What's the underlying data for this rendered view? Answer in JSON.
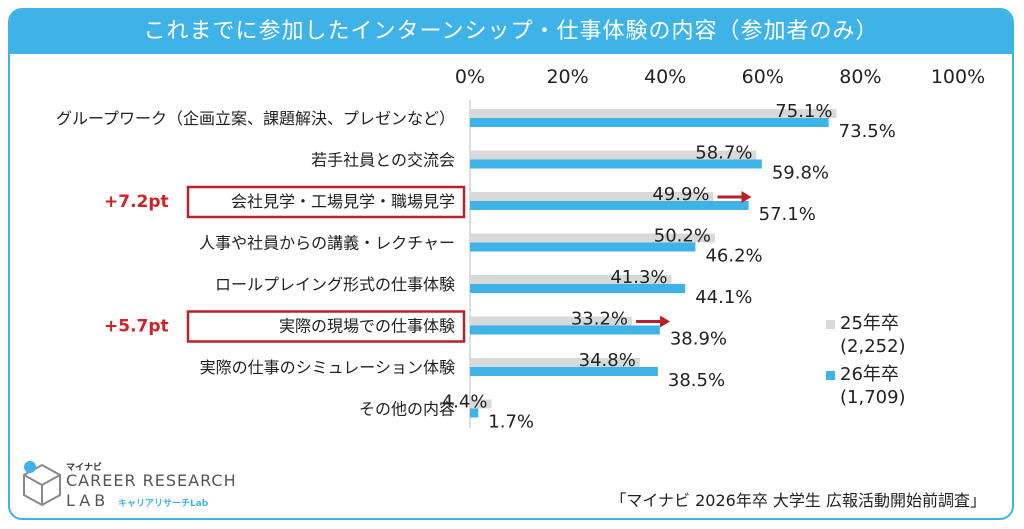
{
  "title": "これまでに参加したインターンシップ・仕事体験の内容（参加者のみ）",
  "chart_data": {
    "type": "bar",
    "orientation": "horizontal",
    "categories": [
      "グループワーク（企画立案、課題解決、プレゼンなど）",
      "若手社員との交流会",
      "会社見学・工場見学・職場見学",
      "人事や社員からの講義・レクチャー",
      "ロールプレイング形式の仕事体験",
      "実際の現場での仕事体験",
      "実際の仕事のシミュレーション体験",
      "その他の内容"
    ],
    "series": [
      {
        "name": "25年卒",
        "n_label": "(2,252)",
        "color": "#d9d9d9",
        "values": [
          75.1,
          58.7,
          49.9,
          50.2,
          41.3,
          33.2,
          34.8,
          4.4
        ],
        "labels": [
          "75.1%",
          "58.7%",
          "49.9%",
          "50.2%",
          "41.3%",
          "33.2%",
          "34.8%",
          "4.4%"
        ]
      },
      {
        "name": "26年卒",
        "n_label": "(1,709)",
        "color": "#3fb2e7",
        "values": [
          73.5,
          59.8,
          57.1,
          46.2,
          44.1,
          38.9,
          38.5,
          1.7
        ],
        "labels": [
          "73.5%",
          "59.8%",
          "57.1%",
          "46.2%",
          "44.1%",
          "38.9%",
          "38.5%",
          "1.7%"
        ]
      }
    ],
    "x_ticks": [
      "0%",
      "20%",
      "40%",
      "60%",
      "80%",
      "100%"
    ],
    "xlim": [
      0,
      100
    ],
    "highlights": [
      {
        "category_index": 2,
        "diff_label": "+7.2pt"
      },
      {
        "category_index": 5,
        "diff_label": "+5.7pt"
      }
    ],
    "highlight_color": "#b8202a",
    "legend_position": "right"
  },
  "source": "「マイナビ 2026年卒 大学生 広報活動開始前調査」",
  "logo": {
    "small_text": "マイナビ",
    "main_text": "CAREER RESEARCH",
    "lab_text": "LAB",
    "kana_text": "キャリアリサーチLab"
  }
}
